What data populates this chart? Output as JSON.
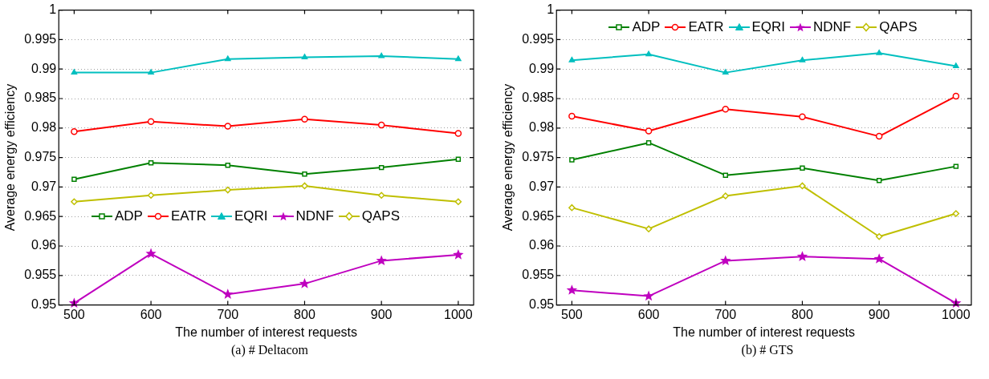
{
  "chart_data": [
    {
      "type": "line",
      "title": "(a) # Deltacom",
      "xlabel": "The number of interest requests",
      "ylabel": "Average energy efficiency",
      "x": [
        500,
        600,
        700,
        800,
        900,
        1000
      ],
      "xlim": [
        480,
        1020
      ],
      "xticks": [
        500,
        600,
        700,
        800,
        900,
        1000
      ],
      "ylim": [
        0.95,
        1
      ],
      "yticks": [
        0.95,
        0.955,
        0.96,
        0.965,
        0.97,
        0.975,
        0.98,
        0.985,
        0.99,
        0.995,
        1
      ],
      "grid": "y",
      "legend": "center",
      "line_style": "solid",
      "series": [
        {
          "name": "ADP",
          "color": "#008000",
          "marker": "square",
          "values": [
            0.9713,
            0.9741,
            0.9737,
            0.9722,
            0.9733,
            0.9747
          ]
        },
        {
          "name": "EATR",
          "color": "#ff0000",
          "marker": "circle",
          "values": [
            0.9794,
            0.9811,
            0.9803,
            0.9815,
            0.9805,
            0.9791
          ]
        },
        {
          "name": "EQRI",
          "color": "#00bfbf",
          "marker": "triangle",
          "values": [
            0.9894,
            0.9894,
            0.9917,
            0.992,
            0.9922,
            0.9917
          ]
        },
        {
          "name": "NDNF",
          "color": "#bf00bf",
          "marker": "star",
          "values": [
            0.9503,
            0.9587,
            0.9518,
            0.9536,
            0.9575,
            0.9585
          ]
        },
        {
          "name": "QAPS",
          "color": "#bfbf00",
          "marker": "diamond",
          "values": [
            0.9675,
            0.9686,
            0.9695,
            0.9702,
            0.9686,
            0.9675
          ]
        }
      ]
    },
    {
      "type": "line",
      "title": "(b) # GTS",
      "xlabel": "The number of interest requests",
      "ylabel": "Average energy efficiency",
      "x": [
        500,
        600,
        700,
        800,
        900,
        1000
      ],
      "xlim": [
        480,
        1020
      ],
      "xticks": [
        500,
        600,
        700,
        800,
        900,
        1000
      ],
      "ylim": [
        0.95,
        1
      ],
      "yticks": [
        0.95,
        0.955,
        0.96,
        0.965,
        0.97,
        0.975,
        0.98,
        0.985,
        0.99,
        0.995,
        1
      ],
      "grid": "y",
      "legend": "top",
      "line_style": "solid",
      "series": [
        {
          "name": "ADP",
          "color": "#008000",
          "marker": "square",
          "values": [
            0.9746,
            0.9775,
            0.972,
            0.9732,
            0.9711,
            0.9735
          ]
        },
        {
          "name": "EATR",
          "color": "#ff0000",
          "marker": "circle",
          "values": [
            0.982,
            0.9795,
            0.9832,
            0.9819,
            0.9786,
            0.9854
          ]
        },
        {
          "name": "EQRI",
          "color": "#00bfbf",
          "marker": "triangle",
          "values": [
            0.9915,
            0.9925,
            0.9894,
            0.9915,
            0.9927,
            0.9905
          ]
        },
        {
          "name": "NDNF",
          "color": "#bf00bf",
          "marker": "star",
          "values": [
            0.9525,
            0.9515,
            0.9575,
            0.9582,
            0.9578,
            0.9503
          ]
        },
        {
          "name": "QAPS",
          "color": "#bfbf00",
          "marker": "diamond",
          "values": [
            0.9665,
            0.9629,
            0.9685,
            0.9702,
            0.9616,
            0.9655
          ]
        }
      ]
    }
  ]
}
